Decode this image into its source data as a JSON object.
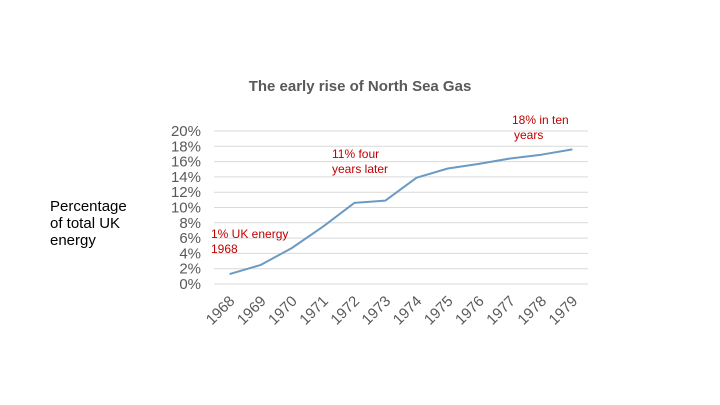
{
  "chart_data": {
    "type": "line",
    "title": "The early rise of North Sea Gas",
    "ylabel_lines": [
      "Percentage",
      "of total UK",
      "energy"
    ],
    "xlabel": "",
    "categories": [
      "1968",
      "1969",
      "1970",
      "1971",
      "1972",
      "1973",
      "1974",
      "1975",
      "1976",
      "1977",
      "1978",
      "1979"
    ],
    "series": [
      {
        "values": [
          1.3,
          2.5,
          4.7,
          7.5,
          10.6,
          10.9,
          13.9,
          15.1,
          15.7,
          16.4,
          16.9,
          17.6
        ]
      }
    ],
    "ylim": [
      0,
      20
    ],
    "yticks": [
      "0%",
      "2%",
      "4%",
      "6%",
      "8%",
      "10%",
      "12%",
      "14%",
      "16%",
      "18%",
      "20%"
    ],
    "grid": true,
    "legend": "none",
    "colors": {
      "line": "#6b9ac4",
      "grid": "#d9d9d9",
      "annotation": "#c00000",
      "tick": "#595959"
    },
    "annotations": [
      {
        "lines": [
          "1% UK energy",
          "1968"
        ],
        "category": "1968",
        "y": 6.0
      },
      {
        "lines": [
          "11% four",
          "years later"
        ],
        "category": "1972",
        "y": 16.5
      },
      {
        "lines": [
          "18% in ten",
          "years"
        ],
        "category": "1979",
        "y": 20.9
      }
    ]
  }
}
